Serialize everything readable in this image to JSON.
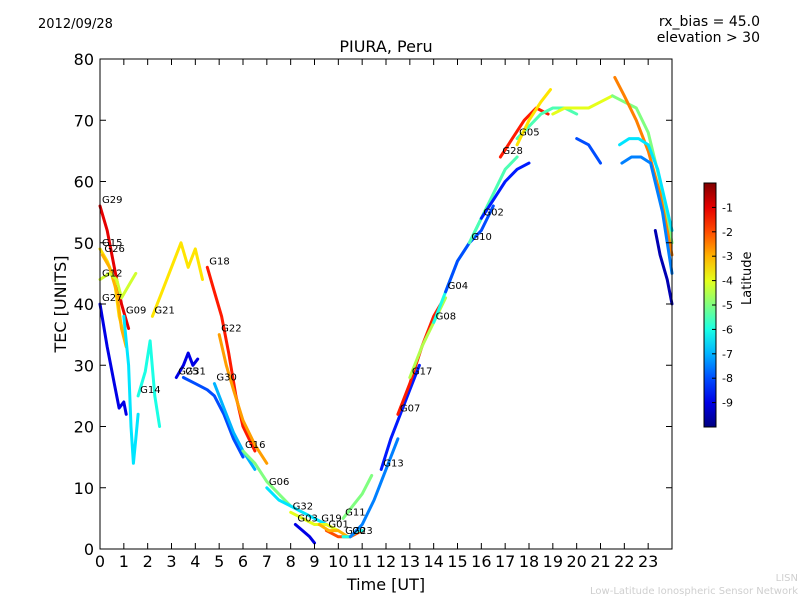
{
  "header": {
    "date": "2012/09/28",
    "rx_bias": "rx_bias = 45.0",
    "elevation": "elevation > 30"
  },
  "footer": {
    "line1": "LISN",
    "line2": "Low-Latitude Ionospheric Sensor Network"
  },
  "colorbar": {
    "label": "Latitude",
    "ticks": [
      "-1",
      "-2",
      "-3",
      "-4",
      "-5",
      "-6",
      "-7",
      "-8",
      "-9"
    ],
    "range": [
      -10,
      0
    ],
    "colormap": "jet"
  },
  "chart_data": {
    "type": "scatter",
    "title": "PIURA, Peru",
    "xlabel": "Time [UT]",
    "ylabel": "TEC [UNITS]",
    "xlim": [
      0,
      24
    ],
    "ylim": [
      0,
      80
    ],
    "xticks": [
      "0",
      "1",
      "2",
      "3",
      "4",
      "5",
      "6",
      "7",
      "8",
      "9",
      "10",
      "11",
      "12",
      "13",
      "14",
      "15",
      "16",
      "17",
      "18",
      "19",
      "20",
      "21",
      "22",
      "23"
    ],
    "yticks": [
      "0",
      "10",
      "20",
      "30",
      "40",
      "50",
      "60",
      "70",
      "80"
    ],
    "grid": false,
    "series": [
      {
        "name": "G29",
        "lat": -1.0,
        "points": [
          [
            0.0,
            56
          ],
          [
            0.3,
            52
          ],
          [
            0.6,
            46
          ],
          [
            0.9,
            40
          ],
          [
            1.2,
            36
          ]
        ]
      },
      {
        "name": "G15",
        "lat": -3.5,
        "points": [
          [
            0.0,
            49
          ],
          [
            0.3,
            47
          ],
          [
            0.6,
            44
          ],
          [
            0.8,
            38
          ],
          [
            1.0,
            35
          ]
        ]
      },
      {
        "name": "G26",
        "lat": -3.0,
        "points": [
          [
            0.1,
            48
          ],
          [
            0.4,
            46
          ],
          [
            0.7,
            42
          ],
          [
            0.9,
            36
          ],
          [
            1.1,
            33
          ]
        ]
      },
      {
        "name": "G12",
        "lat": -4.2,
        "points": [
          [
            0.0,
            44
          ],
          [
            0.4,
            45
          ],
          [
            0.7,
            44
          ],
          [
            0.9,
            41
          ],
          [
            1.2,
            43
          ],
          [
            1.5,
            45
          ]
        ]
      },
      {
        "name": "G27",
        "lat": -9.0,
        "points": [
          [
            0.0,
            40
          ],
          [
            0.3,
            33
          ],
          [
            0.6,
            27
          ],
          [
            0.8,
            23
          ],
          [
            1.0,
            24
          ],
          [
            1.1,
            22
          ]
        ]
      },
      {
        "name": "G09",
        "lat": -6.5,
        "points": [
          [
            1.0,
            38
          ],
          [
            1.2,
            30
          ],
          [
            1.3,
            20
          ],
          [
            1.4,
            14
          ],
          [
            1.5,
            18
          ],
          [
            1.6,
            22
          ]
        ]
      },
      {
        "name": "G14",
        "lat": -6.0,
        "points": [
          [
            1.6,
            25
          ],
          [
            1.9,
            29
          ],
          [
            2.1,
            34
          ],
          [
            2.3,
            25
          ],
          [
            2.5,
            20
          ]
        ]
      },
      {
        "name": "G21",
        "lat": -3.5,
        "points": [
          [
            2.2,
            38
          ],
          [
            2.6,
            42
          ],
          [
            3.0,
            46
          ],
          [
            3.4,
            50
          ],
          [
            3.7,
            46
          ],
          [
            4.0,
            49
          ],
          [
            4.3,
            44
          ]
        ]
      },
      {
        "name": "G25",
        "lat": -9.0,
        "points": [
          [
            3.2,
            28
          ],
          [
            3.5,
            30
          ],
          [
            3.7,
            32
          ],
          [
            3.9,
            30
          ],
          [
            4.1,
            31
          ]
        ]
      },
      {
        "name": "G31",
        "lat": -8.0,
        "points": [
          [
            3.5,
            28
          ],
          [
            4.0,
            27
          ],
          [
            4.5,
            26
          ],
          [
            4.8,
            25
          ],
          [
            5.2,
            22
          ],
          [
            5.6,
            18
          ],
          [
            6.0,
            15
          ]
        ]
      },
      {
        "name": "G18",
        "lat": -1.5,
        "points": [
          [
            4.5,
            46
          ],
          [
            4.8,
            42
          ],
          [
            5.1,
            38
          ],
          [
            5.4,
            32
          ],
          [
            5.7,
            25
          ],
          [
            6.0,
            20
          ],
          [
            6.5,
            16
          ]
        ]
      },
      {
        "name": "G22",
        "lat": -2.8,
        "points": [
          [
            5.0,
            35
          ],
          [
            5.3,
            30
          ],
          [
            5.6,
            26
          ],
          [
            6.0,
            21
          ],
          [
            6.5,
            17
          ],
          [
            7.0,
            14
          ]
        ]
      },
      {
        "name": "G30",
        "lat": -7.0,
        "points": [
          [
            4.8,
            27
          ],
          [
            5.2,
            23
          ],
          [
            5.6,
            19
          ],
          [
            6.0,
            16
          ],
          [
            6.5,
            13
          ]
        ]
      },
      {
        "name": "G16",
        "lat": -5.0,
        "points": [
          [
            6.0,
            16
          ],
          [
            6.5,
            14
          ],
          [
            7.0,
            11
          ],
          [
            7.5,
            9
          ],
          [
            8.0,
            7
          ]
        ]
      },
      {
        "name": "G06",
        "lat": -6.5,
        "points": [
          [
            7.0,
            10
          ],
          [
            7.5,
            8
          ],
          [
            8.0,
            7
          ],
          [
            8.5,
            6
          ],
          [
            9.0,
            5
          ],
          [
            9.5,
            4
          ]
        ]
      },
      {
        "name": "G32",
        "lat": -4.0,
        "points": [
          [
            8.0,
            6
          ],
          [
            8.5,
            5
          ],
          [
            9.0,
            4
          ],
          [
            9.5,
            4
          ],
          [
            10.0,
            3
          ]
        ]
      },
      {
        "name": "G03",
        "lat": -9.0,
        "points": [
          [
            8.2,
            4
          ],
          [
            8.5,
            3
          ],
          [
            8.8,
            2
          ],
          [
            9.0,
            1
          ]
        ]
      },
      {
        "name": "G01",
        "lat": -2.0,
        "points": [
          [
            9.5,
            3
          ],
          [
            10.0,
            2
          ],
          [
            10.5,
            2
          ],
          [
            11.0,
            3
          ]
        ]
      },
      {
        "name": "G19",
        "lat": -3.0,
        "points": [
          [
            9.2,
            4
          ],
          [
            9.6,
            3
          ],
          [
            10.0,
            3
          ],
          [
            10.4,
            2
          ]
        ]
      },
      {
        "name": "G20",
        "lat": -6.0,
        "points": [
          [
            10.2,
            2
          ],
          [
            10.5,
            2
          ],
          [
            10.8,
            3
          ],
          [
            11.0,
            3
          ]
        ]
      },
      {
        "name": "G11",
        "lat": -5.0,
        "points": [
          [
            10.2,
            5
          ],
          [
            10.6,
            7
          ],
          [
            11.0,
            9
          ],
          [
            11.4,
            12
          ]
        ]
      },
      {
        "name": "G23",
        "lat": -7.5,
        "points": [
          [
            10.5,
            2
          ],
          [
            11.0,
            4
          ],
          [
            11.5,
            8
          ],
          [
            12.0,
            13
          ],
          [
            12.5,
            18
          ]
        ]
      },
      {
        "name": "G13",
        "lat": -8.5,
        "points": [
          [
            11.8,
            13
          ],
          [
            12.2,
            18
          ],
          [
            12.6,
            22
          ],
          [
            13.0,
            26
          ],
          [
            13.4,
            30
          ]
        ]
      },
      {
        "name": "G07",
        "lat": -1.5,
        "points": [
          [
            12.5,
            22
          ],
          [
            13.0,
            27
          ],
          [
            13.5,
            33
          ],
          [
            14.0,
            38
          ],
          [
            14.3,
            40
          ]
        ]
      },
      {
        "name": "G17",
        "lat": -4.5,
        "points": [
          [
            13.0,
            28
          ],
          [
            13.5,
            33
          ],
          [
            14.0,
            37
          ],
          [
            14.5,
            41
          ]
        ]
      },
      {
        "name": "G08",
        "lat": -6.0,
        "points": [
          [
            14.0,
            37
          ],
          [
            14.5,
            42
          ],
          [
            15.0,
            47
          ],
          [
            15.5,
            50
          ],
          [
            16.0,
            54
          ]
        ]
      },
      {
        "name": "G04",
        "lat": -8.0,
        "points": [
          [
            14.5,
            42
          ],
          [
            15.0,
            47
          ],
          [
            15.5,
            50
          ],
          [
            16.0,
            52
          ],
          [
            16.5,
            56
          ]
        ]
      },
      {
        "name": "G10",
        "lat": -5.5,
        "points": [
          [
            15.5,
            50
          ],
          [
            16.0,
            54
          ],
          [
            16.5,
            58
          ],
          [
            17.0,
            62
          ],
          [
            17.5,
            64
          ]
        ]
      },
      {
        "name": "G02",
        "lat": -8.5,
        "points": [
          [
            16.0,
            54
          ],
          [
            16.5,
            57
          ],
          [
            17.0,
            60
          ],
          [
            17.5,
            62
          ],
          [
            18.0,
            63
          ]
        ]
      },
      {
        "name": "G28",
        "lat": -1.5,
        "points": [
          [
            16.8,
            64
          ],
          [
            17.3,
            67
          ],
          [
            17.8,
            70
          ],
          [
            18.3,
            72
          ],
          [
            18.8,
            71
          ]
        ]
      },
      {
        "name": "G05",
        "lat": -5.5,
        "points": [
          [
            17.5,
            67
          ],
          [
            18.0,
            69
          ],
          [
            18.5,
            71
          ],
          [
            19.0,
            72
          ],
          [
            19.5,
            72
          ],
          [
            20.0,
            71
          ]
        ]
      },
      {
        "name": "",
        "lat": -3.5,
        "points": [
          [
            17.5,
            66
          ],
          [
            18.0,
            70
          ],
          [
            18.5,
            73
          ],
          [
            18.9,
            75
          ]
        ]
      },
      {
        "name": "",
        "lat": -4.0,
        "points": [
          [
            19.0,
            71
          ],
          [
            19.5,
            72
          ],
          [
            20.0,
            72
          ],
          [
            20.5,
            72
          ],
          [
            21.0,
            73
          ],
          [
            21.5,
            74
          ]
        ]
      },
      {
        "name": "",
        "lat": -5.0,
        "points": [
          [
            21.5,
            74
          ],
          [
            22.0,
            73
          ],
          [
            22.5,
            72
          ],
          [
            23.0,
            68
          ],
          [
            23.5,
            60
          ],
          [
            24.0,
            50
          ]
        ]
      },
      {
        "name": "",
        "lat": -2.5,
        "points": [
          [
            21.6,
            77
          ],
          [
            22.0,
            74
          ],
          [
            22.5,
            70
          ],
          [
            23.0,
            65
          ],
          [
            23.5,
            58
          ],
          [
            24.0,
            48
          ]
        ]
      },
      {
        "name": "",
        "lat": -8.0,
        "points": [
          [
            20.0,
            67
          ],
          [
            20.5,
            66
          ],
          [
            21.0,
            63
          ]
        ]
      },
      {
        "name": "",
        "lat": -6.5,
        "points": [
          [
            21.8,
            66
          ],
          [
            22.2,
            67
          ],
          [
            22.6,
            67
          ],
          [
            23.0,
            66
          ],
          [
            23.4,
            62
          ],
          [
            24.0,
            52
          ]
        ]
      },
      {
        "name": "",
        "lat": -7.5,
        "points": [
          [
            21.9,
            63
          ],
          [
            22.3,
            64
          ],
          [
            22.7,
            64
          ],
          [
            23.1,
            63
          ],
          [
            23.6,
            55
          ],
          [
            24.0,
            45
          ]
        ]
      },
      {
        "name": "",
        "lat": -9.5,
        "points": [
          [
            23.3,
            52
          ],
          [
            23.5,
            48
          ],
          [
            23.8,
            44
          ],
          [
            24.0,
            40
          ]
        ]
      }
    ]
  }
}
